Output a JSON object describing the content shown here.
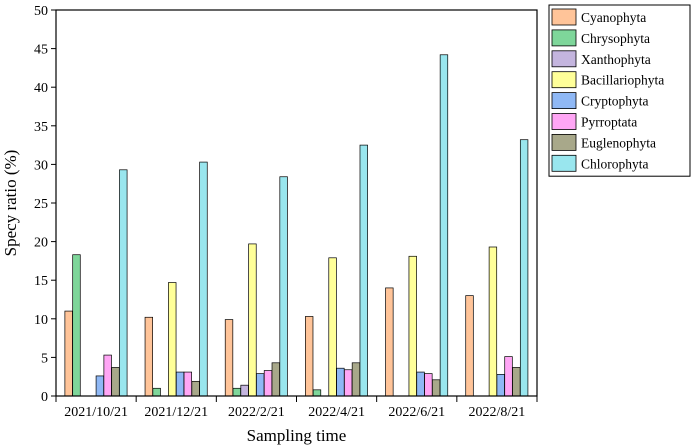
{
  "chart_data": {
    "type": "bar",
    "xlabel": "Sampling time",
    "ylabel": "Specy ratio (%)",
    "ylim": [
      0,
      50
    ],
    "yticks": [
      0,
      5,
      10,
      15,
      20,
      25,
      30,
      35,
      40,
      45,
      50
    ],
    "grid": false,
    "legend_position": "top-right",
    "categories": [
      "2021/10/21",
      "2021/12/21",
      "2022/2/21",
      "2022/4/21",
      "2022/6/21",
      "2022/8/21"
    ],
    "series": [
      {
        "name": "Cyanophyta",
        "color": "#FFC499",
        "values": [
          11.0,
          10.2,
          9.9,
          10.3,
          14.0,
          13.0
        ]
      },
      {
        "name": "Chrysophyta",
        "color": "#7ED69A",
        "values": [
          18.3,
          1.0,
          1.0,
          0.8,
          0,
          0
        ]
      },
      {
        "name": "Xanthophyta",
        "color": "#C4B5DE",
        "values": [
          0,
          0,
          1.4,
          0,
          0,
          0
        ]
      },
      {
        "name": "Bacillariophyta",
        "color": "#FFFF99",
        "values": [
          0,
          14.7,
          19.7,
          17.9,
          18.1,
          19.3
        ]
      },
      {
        "name": "Cryptophyta",
        "color": "#8FB8F5",
        "values": [
          2.6,
          3.1,
          2.9,
          3.6,
          3.1,
          2.8
        ]
      },
      {
        "name": "Pyrroptata",
        "color": "#FFA6F5",
        "values": [
          5.3,
          3.1,
          3.3,
          3.4,
          2.9,
          5.1
        ]
      },
      {
        "name": "Euglenophyta",
        "color": "#A8A88A",
        "values": [
          3.7,
          1.9,
          4.3,
          4.3,
          2.1,
          3.7
        ]
      },
      {
        "name": "Chlorophyta",
        "color": "#99E6EE",
        "values": [
          29.3,
          30.3,
          28.4,
          32.5,
          44.2,
          33.2
        ]
      }
    ]
  }
}
